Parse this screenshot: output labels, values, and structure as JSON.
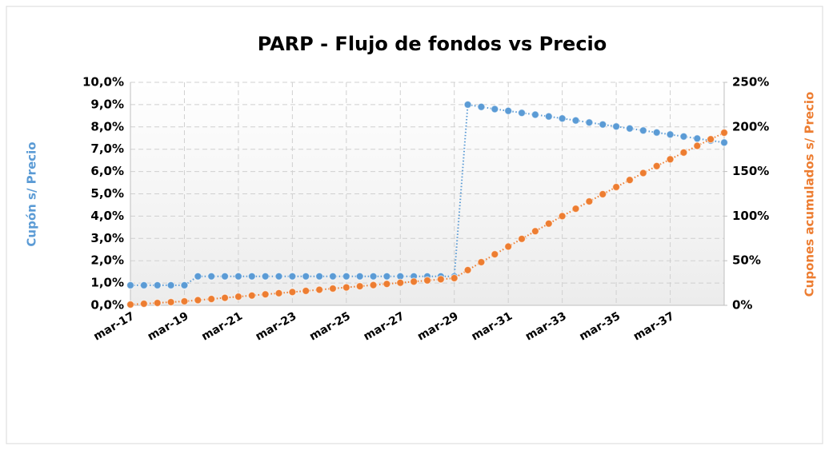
{
  "chart_data": {
    "type": "line",
    "title": "PARP - Flujo de fondos vs Precio",
    "y_label": "Cupón s/ Precio",
    "y2_label": "Cupones acumulados s/ Precio",
    "categories": [
      "mar-17",
      null,
      null,
      null,
      "mar-19",
      null,
      null,
      null,
      "mar-21",
      null,
      null,
      null,
      "mar-23",
      null,
      null,
      null,
      "mar-25",
      null,
      null,
      null,
      "mar-27",
      null,
      null,
      null,
      "mar-29",
      null,
      null,
      null,
      "mar-31",
      null,
      null,
      null,
      "mar-33",
      null,
      null,
      null,
      "mar-35",
      null,
      null,
      null,
      "mar-37",
      null,
      null,
      null,
      null
    ],
    "series": [
      {
        "name": "Cupón s/ Precio",
        "color": "#5b9bd5",
        "axis": "y",
        "values": [
          0.9,
          0.9,
          0.9,
          0.9,
          0.9,
          1.3,
          1.3,
          1.3,
          1.3,
          1.3,
          1.3,
          1.3,
          1.3,
          1.3,
          1.3,
          1.3,
          1.3,
          1.3,
          1.3,
          1.3,
          1.3,
          1.3,
          1.3,
          1.3,
          1.3,
          9.0,
          8.9,
          8.8,
          8.72,
          8.63,
          8.55,
          8.47,
          8.38,
          8.29,
          8.2,
          8.11,
          8.02,
          7.93,
          7.84,
          7.75,
          7.66,
          7.57,
          7.48,
          7.39,
          7.3
        ]
      },
      {
        "name": "Cupones acumulados s/ Precio",
        "color": "#ed7d31",
        "axis": "y2",
        "values": [
          0.9,
          1.8,
          2.7,
          3.6,
          4.5,
          5.8,
          7.1,
          8.4,
          9.7,
          11.0,
          12.3,
          13.6,
          14.9,
          16.2,
          17.5,
          18.8,
          20.1,
          21.4,
          22.7,
          24.0,
          25.3,
          26.6,
          27.9,
          29.2,
          30.5,
          39.5,
          48.4,
          57.2,
          65.9,
          74.5,
          83.1,
          91.6,
          100.0,
          108.3,
          116.5,
          124.6,
          132.6,
          140.5,
          148.3,
          156.1,
          163.7,
          171.3,
          178.8,
          186.2,
          193.5
        ]
      }
    ],
    "ylim": [
      0,
      10
    ],
    "yticks": [
      {
        "value": 0,
        "label": "0,0%"
      },
      {
        "value": 1,
        "label": "1,0%"
      },
      {
        "value": 2,
        "label": "2,0%"
      },
      {
        "value": 3,
        "label": "3,0%"
      },
      {
        "value": 4,
        "label": "4,0%"
      },
      {
        "value": 5,
        "label": "5,0%"
      },
      {
        "value": 6,
        "label": "6,0%"
      },
      {
        "value": 7,
        "label": "7,0%"
      },
      {
        "value": 8,
        "label": "8,0%"
      },
      {
        "value": 9,
        "label": "9,0%"
      },
      {
        "value": 10,
        "label": "10,0%"
      }
    ],
    "y2lim": [
      0,
      250
    ],
    "y2ticks": [
      {
        "value": 0,
        "label": "0%"
      },
      {
        "value": 50,
        "label": "50%"
      },
      {
        "value": 100,
        "label": "100%"
      },
      {
        "value": 150,
        "label": "150%"
      },
      {
        "value": 200,
        "label": "200%"
      },
      {
        "value": 250,
        "label": "250%"
      }
    ],
    "grid": true
  }
}
